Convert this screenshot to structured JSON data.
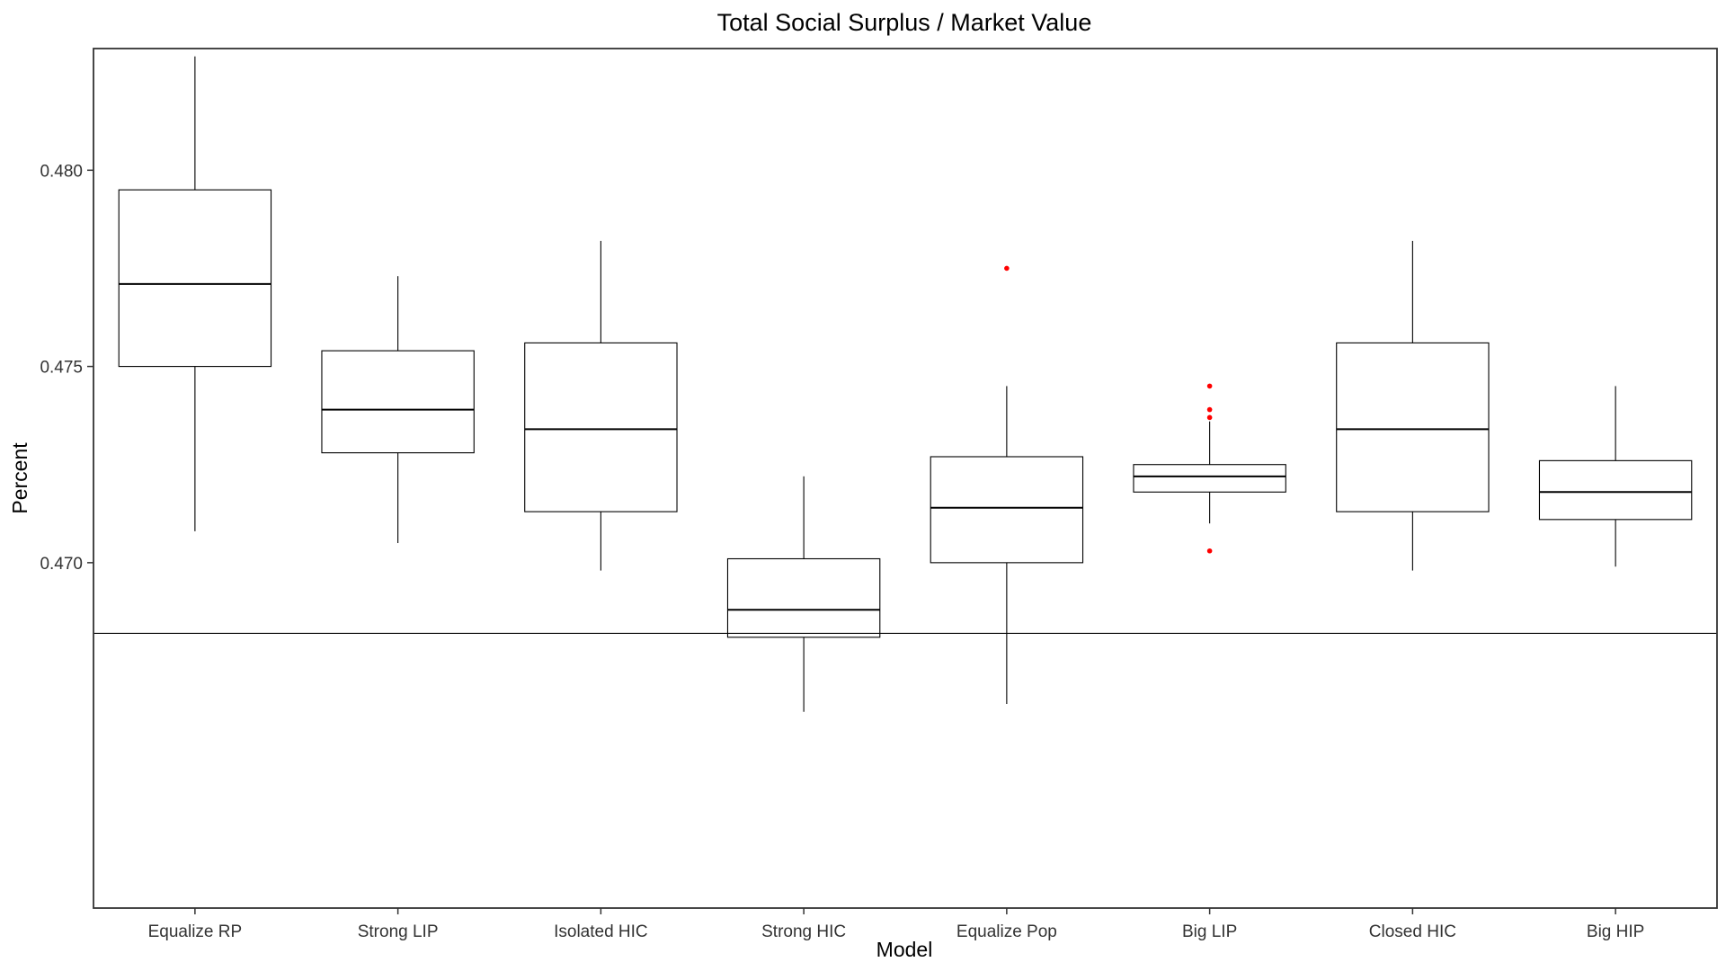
{
  "chart_data": {
    "type": "boxplot",
    "title": "Total Social Surplus / Market Value",
    "xlabel": "Model",
    "ylabel": "Percent",
    "ylim": [
      0.4612,
      0.4831
    ],
    "yticks": [
      0.47,
      0.475,
      0.48
    ],
    "ytick_labels": [
      "0.470",
      "0.475",
      "0.480"
    ],
    "categories": [
      "Equalize RP",
      "Strong LIP",
      "Isolated HIC",
      "Strong HIC",
      "Equalize Pop",
      "Big LIP",
      "Closed HIC",
      "Big HIP"
    ],
    "boxes": [
      {
        "category": "Equalize RP",
        "whisker_low": 0.4708,
        "q1": 0.475,
        "median": 0.4771,
        "q3": 0.4795,
        "whisker_high": 0.4829,
        "outliers": []
      },
      {
        "category": "Strong LIP",
        "whisker_low": 0.4705,
        "q1": 0.4728,
        "median": 0.4739,
        "q3": 0.4754,
        "whisker_high": 0.4773,
        "outliers": []
      },
      {
        "category": "Isolated HIC",
        "whisker_low": 0.4698,
        "q1": 0.4713,
        "median": 0.4734,
        "q3": 0.4756,
        "whisker_high": 0.4782,
        "outliers": []
      },
      {
        "category": "Strong HIC",
        "whisker_low": 0.4662,
        "q1": 0.4681,
        "median": 0.4688,
        "q3": 0.4701,
        "whisker_high": 0.4722,
        "outliers": []
      },
      {
        "category": "Equalize Pop",
        "whisker_low": 0.4664,
        "q1": 0.47,
        "median": 0.4714,
        "q3": 0.4727,
        "whisker_high": 0.4745,
        "outliers": [
          0.4775
        ]
      },
      {
        "category": "Big LIP",
        "whisker_low": 0.471,
        "q1": 0.4718,
        "median": 0.4722,
        "q3": 0.4725,
        "whisker_high": 0.4736,
        "outliers": [
          0.4703,
          0.4737,
          0.4739,
          0.4745
        ]
      },
      {
        "category": "Closed HIC",
        "whisker_low": 0.4698,
        "q1": 0.4713,
        "median": 0.4734,
        "q3": 0.4756,
        "whisker_high": 0.4782,
        "outliers": []
      },
      {
        "category": "Big HIP",
        "whisker_low": 0.4699,
        "q1": 0.4711,
        "median": 0.4718,
        "q3": 0.4726,
        "whisker_high": 0.4745,
        "outliers": []
      }
    ],
    "reference_line": 0.4682,
    "outlier_color": "#ff0000",
    "line_color": "#000000",
    "grid": false
  }
}
